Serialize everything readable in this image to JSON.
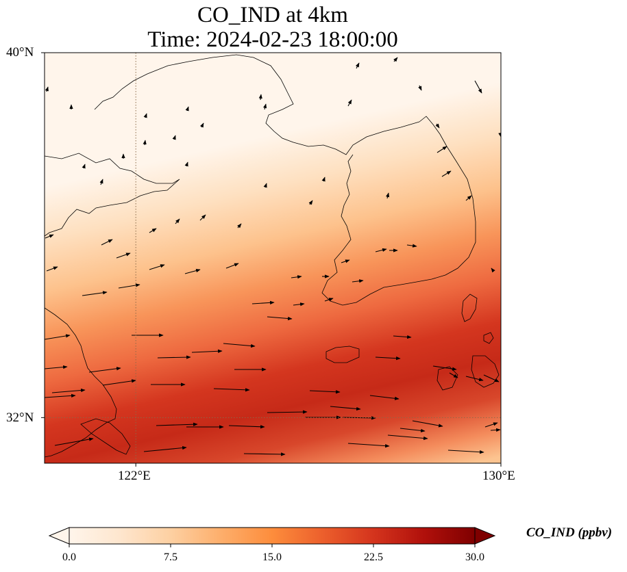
{
  "title": {
    "line1": "CO_IND at 4km",
    "line2": "Time: 2024-02-23 18:00:00"
  },
  "map": {
    "lon_range": [
      120,
      130
    ],
    "lat_range": [
      31,
      40
    ],
    "lat_ticks": [
      {
        "value": 40,
        "label": "40°N"
      },
      {
        "value": 32,
        "label": "32°N"
      }
    ],
    "lon_ticks": [
      {
        "value": 122,
        "label": "122°E"
      },
      {
        "value": 130,
        "label": "130°E"
      }
    ],
    "gridlines": {
      "lon": [
        122
      ],
      "lat": [
        32
      ],
      "style": "dotted"
    },
    "field": "CO_IND concentration (ppbv) with wind vectors",
    "colors": {
      "frame": "#000000",
      "coast": "#000000",
      "grid": "#8a6a4a"
    }
  },
  "colorbar": {
    "label": "CO_IND (ppbv)",
    "min": 0,
    "max": 30,
    "ticks": [
      {
        "value": 0,
        "label": "0.0"
      },
      {
        "value": 7.5,
        "label": "7.5"
      },
      {
        "value": 15,
        "label": "15.0"
      },
      {
        "value": 22.5,
        "label": "22.5"
      },
      {
        "value": 30,
        "label": "30.0"
      }
    ],
    "colormap": [
      "#fff5eb",
      "#fee6ce",
      "#fdd0a2",
      "#fdae6b",
      "#fd8d3c",
      "#f16913",
      "#d94801",
      "#a63603",
      "#7f2704"
    ],
    "extend": "both"
  }
}
